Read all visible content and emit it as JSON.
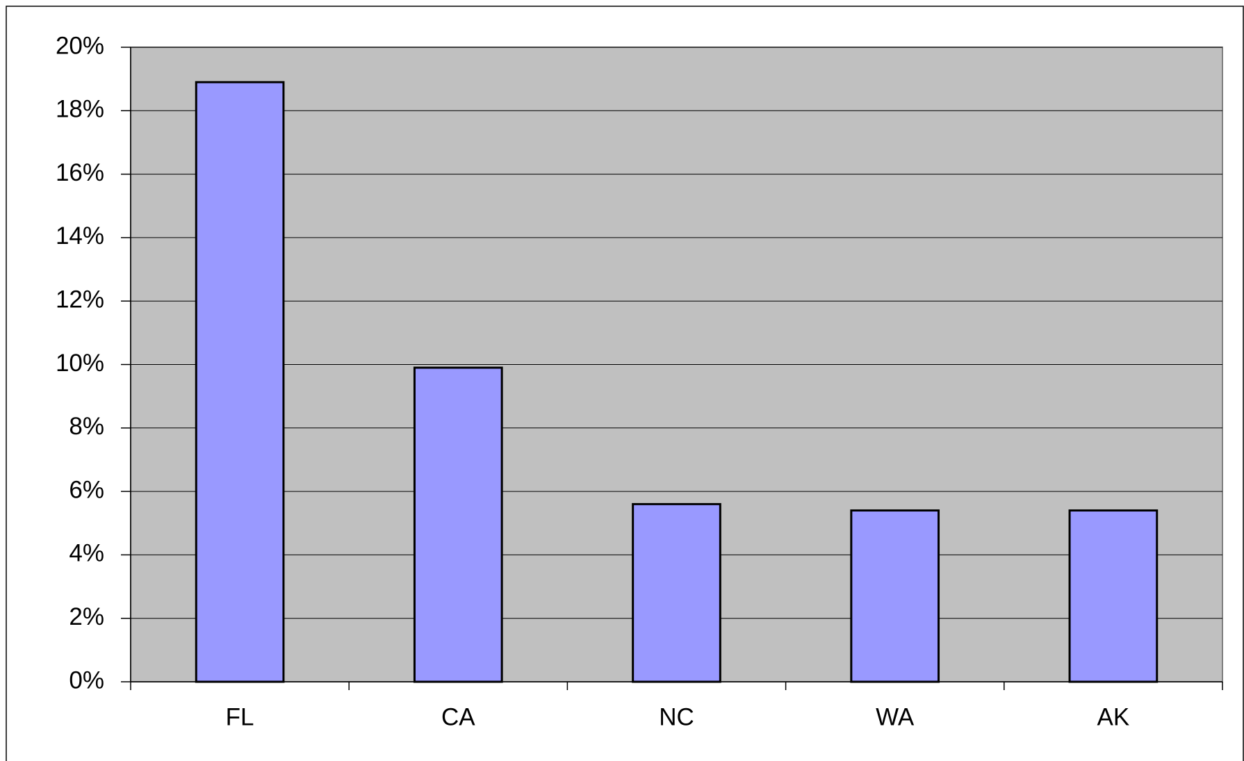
{
  "chart_data": {
    "type": "bar",
    "categories": [
      "FL",
      "CA",
      "NC",
      "WA",
      "AK"
    ],
    "values": [
      18.9,
      9.9,
      5.6,
      5.4,
      5.4
    ],
    "color": "#9999ff",
    "plot_background": "#c0c0c0",
    "ylim": [
      0,
      20
    ],
    "yticks": [
      {
        "value": 0,
        "label": "0%"
      },
      {
        "value": 2,
        "label": "2%"
      },
      {
        "value": 4,
        "label": "4%"
      },
      {
        "value": 6,
        "label": "6%"
      },
      {
        "value": 8,
        "label": "8%"
      },
      {
        "value": 10,
        "label": "10%"
      },
      {
        "value": 12,
        "label": "12%"
      },
      {
        "value": 14,
        "label": "14%"
      },
      {
        "value": 16,
        "label": "16%"
      },
      {
        "value": 18,
        "label": "18%"
      },
      {
        "value": 20,
        "label": "20%"
      }
    ],
    "grid": true
  }
}
